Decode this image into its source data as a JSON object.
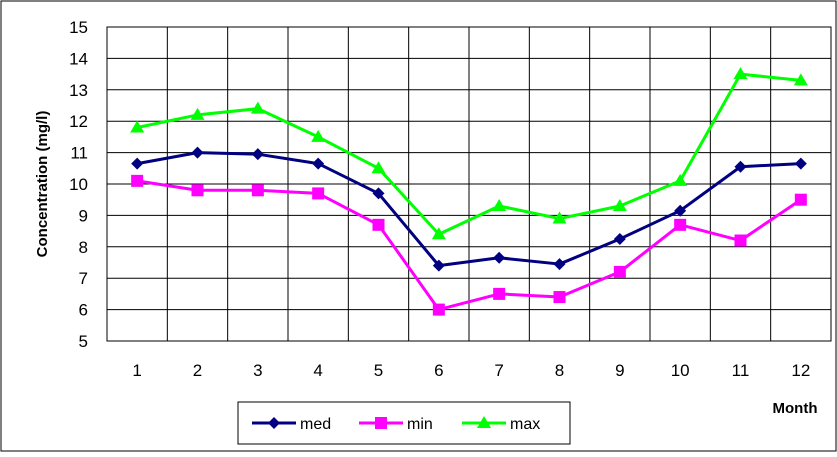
{
  "chart_data": {
    "type": "line",
    "title": "",
    "xlabel": "Month",
    "ylabel": "Concentration (mg/l)",
    "categories": [
      "1",
      "2",
      "3",
      "4",
      "5",
      "6",
      "7",
      "8",
      "9",
      "10",
      "11",
      "12"
    ],
    "ylim": [
      5,
      15
    ],
    "yticks": [
      5,
      6,
      7,
      8,
      9,
      10,
      11,
      12,
      13,
      14,
      15
    ],
    "grid": true,
    "legend_position": "bottom",
    "series": [
      {
        "name": "med",
        "color": "#000080",
        "marker": "diamond",
        "values": [
          10.65,
          11.0,
          10.95,
          10.65,
          9.7,
          7.4,
          7.65,
          7.45,
          8.25,
          9.15,
          10.55,
          10.65
        ]
      },
      {
        "name": "min",
        "color": "#ff00ff",
        "marker": "square",
        "values": [
          10.1,
          9.8,
          9.8,
          9.7,
          8.7,
          6.0,
          6.5,
          6.4,
          7.2,
          8.7,
          8.2,
          9.5
        ]
      },
      {
        "name": "max",
        "color": "#00ff00",
        "marker": "triangle",
        "values": [
          11.8,
          12.2,
          12.4,
          11.5,
          10.5,
          8.4,
          9.3,
          8.9,
          9.3,
          10.1,
          13.5,
          13.3
        ]
      }
    ]
  }
}
